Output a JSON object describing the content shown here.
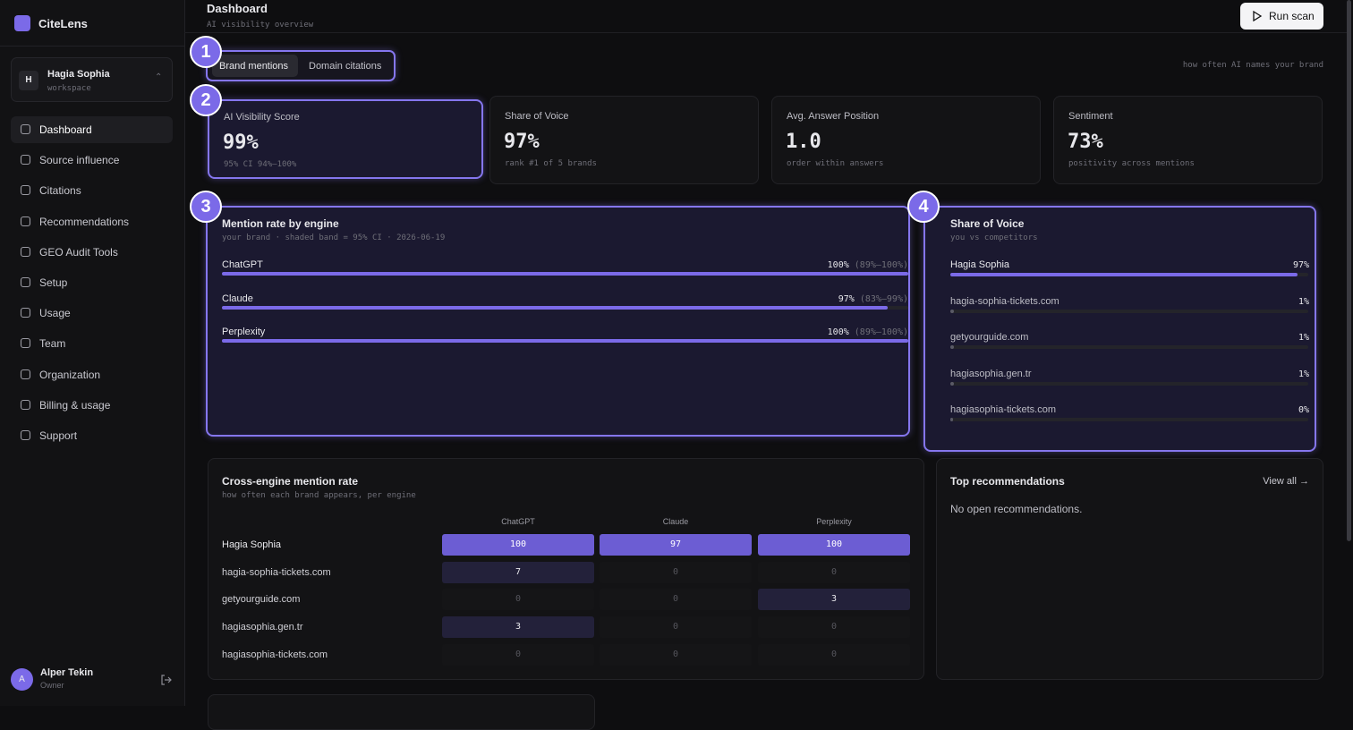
{
  "sidebar": {
    "brand": "CiteLens",
    "workspace": {
      "initial": "H",
      "name": "Hagia Sophia",
      "label": "workspace"
    },
    "nav": [
      "Dashboard",
      "Source influence",
      "Citations",
      "Recommendations",
      "GEO Audit Tools",
      "Setup",
      "Usage",
      "Team",
      "Organization",
      "Billing & usage",
      "Support"
    ],
    "user": {
      "initial": "A",
      "name": "Alper Tekin",
      "role": "Owner"
    }
  },
  "header": {
    "title": "Dashboard",
    "subtitle": "AI visibility overview",
    "button": "Run scan"
  },
  "annotations": [
    "1",
    "2",
    "3",
    "4"
  ],
  "tabs": [
    "Brand mentions",
    "Domain citations"
  ],
  "tabs_hint": "how often AI names your brand",
  "kpis": [
    {
      "label": "AI Visibility Score",
      "value": "99%",
      "note": "95% CI 94%–100%"
    },
    {
      "label": "Share of Voice",
      "value": "97%",
      "note": "rank #1 of 5 brands"
    },
    {
      "label": "Avg. Answer Position",
      "value": "1.0",
      "note": "order within answers"
    },
    {
      "label": "Sentiment",
      "value": "73%",
      "note": "positivity across mentions"
    }
  ],
  "mention_rate": {
    "title": "Mention rate by engine",
    "subtitle": "your brand · shaded band = 95% CI · 2026-06-19",
    "rows": [
      {
        "engine": "ChatGPT",
        "value": 100,
        "value_label": "100%",
        "ci": "(89%–100%)"
      },
      {
        "engine": "Claude",
        "value": 97,
        "value_label": "97%",
        "ci": "(83%–99%)"
      },
      {
        "engine": "Perplexity",
        "value": 100,
        "value_label": "100%",
        "ci": "(89%–100%)"
      }
    ]
  },
  "share_of_voice": {
    "title": "Share of Voice",
    "subtitle": "you vs competitors",
    "rows": [
      {
        "name": "Hagia Sophia",
        "value": 97,
        "value_label": "97%"
      },
      {
        "name": "hagia-sophia-tickets.com",
        "value": 1,
        "value_label": "1%"
      },
      {
        "name": "getyourguide.com",
        "value": 1,
        "value_label": "1%"
      },
      {
        "name": "hagiasophia.gen.tr",
        "value": 1,
        "value_label": "1%"
      },
      {
        "name": "hagiasophia-tickets.com",
        "value": 0,
        "value_label": "0%"
      }
    ]
  },
  "cross_engine": {
    "title": "Cross-engine mention rate",
    "subtitle": "how often each brand appears, per engine",
    "columns": [
      "ChatGPT",
      "Claude",
      "Perplexity"
    ],
    "rows": [
      {
        "name": "Hagia Sophia",
        "values": [
          100,
          97,
          100
        ]
      },
      {
        "name": "hagia-sophia-tickets.com",
        "values": [
          7,
          0,
          0
        ]
      },
      {
        "name": "getyourguide.com",
        "values": [
          0,
          0,
          3
        ]
      },
      {
        "name": "hagiasophia.gen.tr",
        "values": [
          3,
          0,
          0
        ]
      },
      {
        "name": "hagiasophia-tickets.com",
        "values": [
          0,
          0,
          0
        ]
      }
    ]
  },
  "recommendations": {
    "title": "Top recommendations",
    "link": "View all →",
    "empty": "No open recommendations."
  }
}
